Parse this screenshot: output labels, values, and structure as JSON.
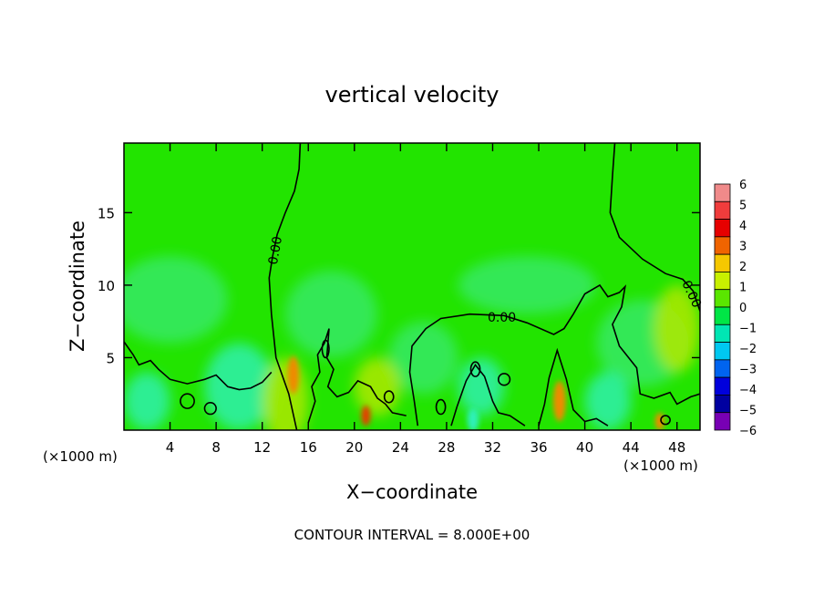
{
  "chart_data": {
    "type": "heatmap",
    "title": "vertical velocity",
    "xlabel": "X−coordinate",
    "ylabel": "Z−coordinate",
    "x_unit_left": "(×1000 m)",
    "x_unit_right": "(×1000 m)",
    "xlim": [
      0,
      50
    ],
    "ylim": [
      0,
      19.8
    ],
    "x_ticks": [
      4,
      8,
      12,
      16,
      20,
      24,
      28,
      32,
      36,
      40,
      44,
      48
    ],
    "x_tick_labels": [
      "4",
      "8",
      "12",
      "16",
      "20",
      "24",
      "28",
      "32",
      "36",
      "40",
      "44",
      "48"
    ],
    "y_ticks": [
      5,
      10,
      15
    ],
    "y_tick_labels": [
      "5",
      "10",
      "15"
    ],
    "contour_labels": [
      "0.00",
      "0.00",
      "0.00"
    ],
    "footer": "CONTOUR INTERVAL = 8.000E+00",
    "colorbar": {
      "levels": [
        6,
        5,
        4,
        3,
        2,
        1,
        0,
        -1,
        -2,
        -3,
        -4,
        -5,
        -6
      ],
      "labels": [
        "6",
        "5",
        "4",
        "3",
        "2",
        "1",
        "0",
        "−1",
        "−2",
        "−3",
        "−4",
        "−5",
        "−6"
      ],
      "colors": [
        "#f08a8a",
        "#f03c3c",
        "#e60000",
        "#f06400",
        "#f5c800",
        "#c8f000",
        "#5ae600",
        "#00e646",
        "#00e6b4",
        "#00c8f0",
        "#0064f0",
        "#0000dc",
        "#0000a0",
        "#7800b4"
      ]
    },
    "field_colors": {
      "background": "#22e400",
      "weak_downdraft": "#38ea6c",
      "downdraft": "#2ef0b8",
      "updraft": "#b8e800",
      "strong_updraft": "#f08a00",
      "core": "#e63c00"
    }
  }
}
